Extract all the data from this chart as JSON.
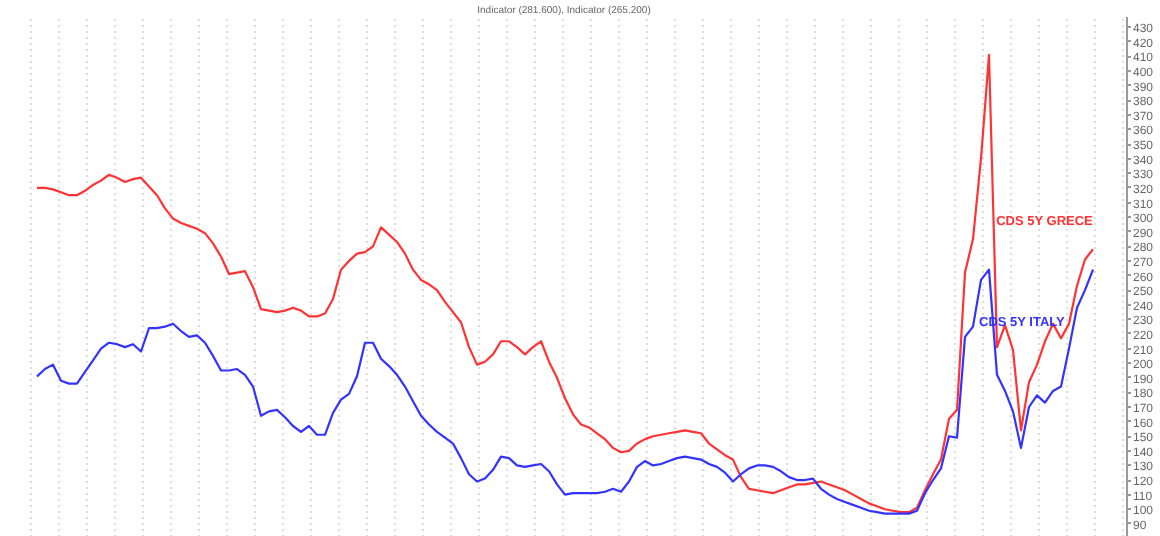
{
  "chart_data": {
    "type": "line",
    "title": "Indicator (281.600), Indicator (265.200)",
    "categories": [
      null,
      null,
      null,
      null,
      null,
      null,
      null,
      null,
      null,
      null,
      null,
      null,
      null,
      null,
      null,
      null,
      null,
      null,
      null,
      null,
      null,
      null,
      null,
      null,
      null,
      null,
      null,
      null,
      null,
      null,
      null,
      null,
      null,
      null,
      null,
      null,
      null,
      null,
      null,
      null,
      null,
      null,
      null,
      null,
      null,
      null,
      null,
      null,
      null,
      null,
      null,
      null,
      null,
      null,
      null,
      null,
      null,
      null,
      null,
      null,
      null,
      null,
      null,
      null,
      null,
      null,
      null,
      null,
      null,
      null,
      null,
      null,
      null,
      null,
      null,
      null,
      null,
      null,
      null,
      null,
      null,
      null,
      null,
      null,
      null,
      null,
      null,
      null,
      null,
      null,
      null,
      null,
      null,
      null,
      null,
      null,
      null,
      null,
      null,
      null,
      null,
      null,
      null,
      null,
      null,
      null,
      null,
      null,
      null,
      null,
      null,
      null,
      null,
      null,
      null,
      null,
      null,
      null,
      null,
      null,
      null,
      null,
      null,
      null,
      null,
      null,
      null,
      null,
      null,
      null,
      null,
      null,
      null
    ],
    "ylim": [
      81,
      437
    ],
    "yticks": [
      90,
      100,
      110,
      120,
      130,
      140,
      150,
      160,
      170,
      180,
      190,
      200,
      210,
      220,
      230,
      240,
      250,
      260,
      270,
      280,
      290,
      300,
      310,
      320,
      330,
      340,
      350,
      360,
      370,
      380,
      390,
      400,
      410,
      420,
      430
    ],
    "tick_labels": "y",
    "grid": "x",
    "line_style": "solid",
    "series": [
      {
        "name": "CDS 5Y GRECE",
        "color": "#ff3333",
        "values": [
          320,
          320,
          319,
          317,
          315,
          315,
          318,
          322,
          325,
          329,
          327,
          324,
          326,
          327,
          321,
          315,
          306,
          299,
          296,
          294,
          292,
          289,
          282,
          273,
          261,
          262,
          263,
          252,
          237,
          236,
          235,
          236,
          238,
          236,
          232,
          232,
          234,
          244,
          264,
          270,
          275,
          276,
          280,
          293,
          288,
          283,
          275,
          264,
          257,
          254,
          250,
          242,
          235,
          228,
          211,
          199,
          201,
          206,
          215,
          215,
          211,
          206,
          211,
          215,
          201,
          190,
          176,
          165,
          158,
          156,
          152,
          148,
          142,
          139,
          140,
          145,
          148,
          150,
          151,
          152,
          153,
          154,
          153,
          152,
          145,
          141,
          137,
          134,
          122,
          114,
          113,
          112,
          111,
          113,
          115,
          117,
          117,
          118,
          119,
          117,
          115,
          113,
          110,
          107,
          104,
          102,
          100,
          99,
          98,
          98,
          101,
          113,
          124,
          134,
          162,
          168,
          262,
          285,
          340,
          411,
          211,
          226,
          209,
          154,
          187,
          199,
          215,
          227,
          217,
          227,
          253,
          271,
          278
        ]
      },
      {
        "name": "CDS 5Y ITALY",
        "color": "#3333ff",
        "values": [
          191,
          196,
          199,
          188,
          186,
          186,
          194,
          202,
          210,
          214,
          213,
          211,
          213,
          208,
          224,
          224,
          225,
          227,
          222,
          218,
          219,
          214,
          205,
          195,
          195,
          196,
          192,
          184,
          164,
          167,
          168,
          163,
          157,
          153,
          157,
          151,
          151,
          166,
          175,
          179,
          191,
          214,
          214,
          203,
          198,
          192,
          184,
          174,
          164,
          158,
          153,
          149,
          145,
          135,
          124,
          119,
          121,
          127,
          136,
          135,
          130,
          129,
          130,
          131,
          126,
          117,
          110,
          111,
          111,
          111,
          111,
          112,
          114,
          112,
          119,
          129,
          133,
          130,
          131,
          133,
          135,
          136,
          135,
          134,
          131,
          129,
          125,
          119,
          124,
          128,
          130,
          130,
          129,
          126,
          122,
          120,
          120,
          121,
          114,
          110,
          107,
          105,
          103,
          101,
          99,
          98,
          97,
          97,
          97,
          97,
          99,
          111,
          120,
          128,
          150,
          149,
          218,
          225,
          257,
          264,
          192,
          181,
          167,
          142,
          170,
          178,
          173,
          181,
          184,
          210,
          238,
          250,
          264
        ]
      }
    ]
  }
}
